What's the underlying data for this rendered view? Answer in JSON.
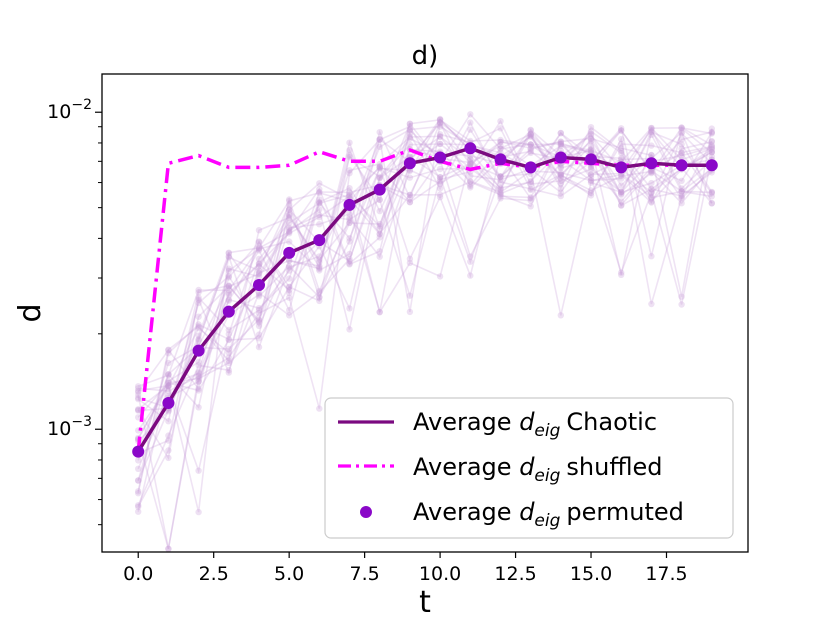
{
  "chart_data": {
    "type": "line",
    "title": "d)",
    "xlabel": "t",
    "ylabel": "d",
    "yscale": "log",
    "xlim": [
      -1.2,
      20.2
    ],
    "ylim": [
      0.00041,
      0.0132
    ],
    "xticks": [
      0.0,
      2.5,
      5.0,
      7.5,
      10.0,
      12.5,
      15.0,
      17.5
    ],
    "xtick_labels": [
      "0.0",
      "2.5",
      "5.0",
      "7.5",
      "10.0",
      "12.5",
      "15.0",
      "17.5"
    ],
    "yticks": [
      0.001,
      0.01
    ],
    "ytick_labels": [
      {
        "base": "10",
        "exp": "−3"
      },
      {
        "base": "10",
        "exp": "−2"
      }
    ],
    "legend": {
      "position": "lower-right",
      "prefix": "Average ",
      "var": "d",
      "sub": "eig",
      "entries": [
        {
          "name": "Chaotic",
          "style": "solid-line",
          "color": "#7b0a80"
        },
        {
          "name": "shuffled",
          "style": "dash-dot-line",
          "color": "#ff00ff"
        },
        {
          "name": "permuted",
          "style": "marker",
          "color": "#8a08c8"
        }
      ]
    },
    "x": [
      0,
      1,
      2,
      3,
      4,
      5,
      6,
      7,
      8,
      9,
      10,
      11,
      12,
      13,
      14,
      15,
      16,
      17,
      18,
      19
    ],
    "series": [
      {
        "name": "Average d_eig Chaotic",
        "color": "#7b0a80",
        "values": [
          0.00085,
          0.00121,
          0.00177,
          0.00235,
          0.00285,
          0.0036,
          0.00395,
          0.0051,
          0.0057,
          0.0069,
          0.0072,
          0.0077,
          0.0071,
          0.0067,
          0.0072,
          0.0071,
          0.0067,
          0.0069,
          0.0068,
          0.0068
        ]
      },
      {
        "name": "Average d_eig shuffled",
        "color": "#ff00ff",
        "values": [
          0.00085,
          0.0069,
          0.0073,
          0.0067,
          0.0067,
          0.0068,
          0.0075,
          0.007,
          0.007,
          0.0076,
          0.007,
          0.0066,
          0.0069,
          0.0067,
          0.007,
          0.0069,
          0.0068,
          0.0068,
          0.0068,
          0.0068
        ]
      },
      {
        "name": "Average d_eig permuted",
        "color": "#8a08c8",
        "values": [
          0.00085,
          0.00121,
          0.00177,
          0.00235,
          0.00285,
          0.0036,
          0.00395,
          0.0051,
          0.0057,
          0.0069,
          0.0072,
          0.0077,
          0.0071,
          0.0067,
          0.0072,
          0.0071,
          0.0067,
          0.0069,
          0.0068,
          0.0068
        ]
      }
    ],
    "background_traces": {
      "color": "#c79ad6",
      "count": 28,
      "description_note": "individual faint trajectories behind the averages",
      "spread_log10": 0.18
    }
  }
}
